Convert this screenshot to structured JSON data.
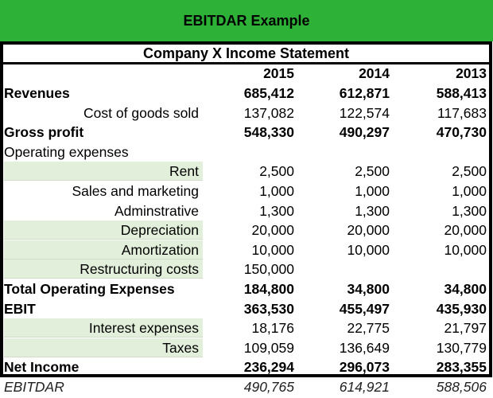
{
  "banner": "EBITDAR Example",
  "title": "Company X Income Statement",
  "years": [
    "2015",
    "2014",
    "2013"
  ],
  "rows": [
    {
      "label": "Revenues",
      "values": [
        "685,412",
        "612,871",
        "588,413"
      ],
      "style": "bold"
    },
    {
      "label": "Cost of goods sold",
      "values": [
        "137,082",
        "122,574",
        "117,683"
      ],
      "style": "indent"
    },
    {
      "label": "Gross profit",
      "values": [
        "548,330",
        "490,297",
        "470,730"
      ],
      "style": "bold"
    },
    {
      "label": "Operating expenses",
      "values": [
        "",
        "",
        ""
      ],
      "style": "plain"
    },
    {
      "label": "Rent",
      "values": [
        "2,500",
        "2,500",
        "2,500"
      ],
      "style": "highlight"
    },
    {
      "label": "Sales and marketing",
      "values": [
        "1,000",
        "1,000",
        "1,000"
      ],
      "style": "indent"
    },
    {
      "label": "Adminstrative ",
      "values": [
        "1,300",
        "1,300",
        "1,300"
      ],
      "style": "indent"
    },
    {
      "label": "Depreciation",
      "values": [
        "20,000",
        "20,000",
        "20,000"
      ],
      "style": "highlight"
    },
    {
      "label": "Amortization",
      "values": [
        "10,000",
        "10,000",
        "10,000"
      ],
      "style": "highlight"
    },
    {
      "label": "Restructuring costs",
      "values": [
        "150,000",
        "",
        ""
      ],
      "style": "highlight"
    },
    {
      "label": "Total Operating Expenses",
      "values": [
        "184,800",
        "34,800",
        "34,800"
      ],
      "style": "bold"
    },
    {
      "label": "EBIT",
      "values": [
        "363,530",
        "455,497",
        "435,930"
      ],
      "style": "bold"
    },
    {
      "label": "Interest expenses",
      "values": [
        "18,176",
        "22,775",
        "21,797"
      ],
      "style": "highlight"
    },
    {
      "label": "Taxes",
      "values": [
        "109,059",
        "136,649",
        "130,779"
      ],
      "style": "highlight"
    },
    {
      "label": "Net Income",
      "values": [
        "236,294",
        "296,073",
        "283,355"
      ],
      "style": "bold"
    },
    {
      "label": "EBITDAR",
      "values": [
        "490,765",
        "614,921",
        "588,506"
      ],
      "style": "italic"
    }
  ],
  "colors": {
    "banner": "#2db136",
    "highlight": "#e2efda"
  }
}
